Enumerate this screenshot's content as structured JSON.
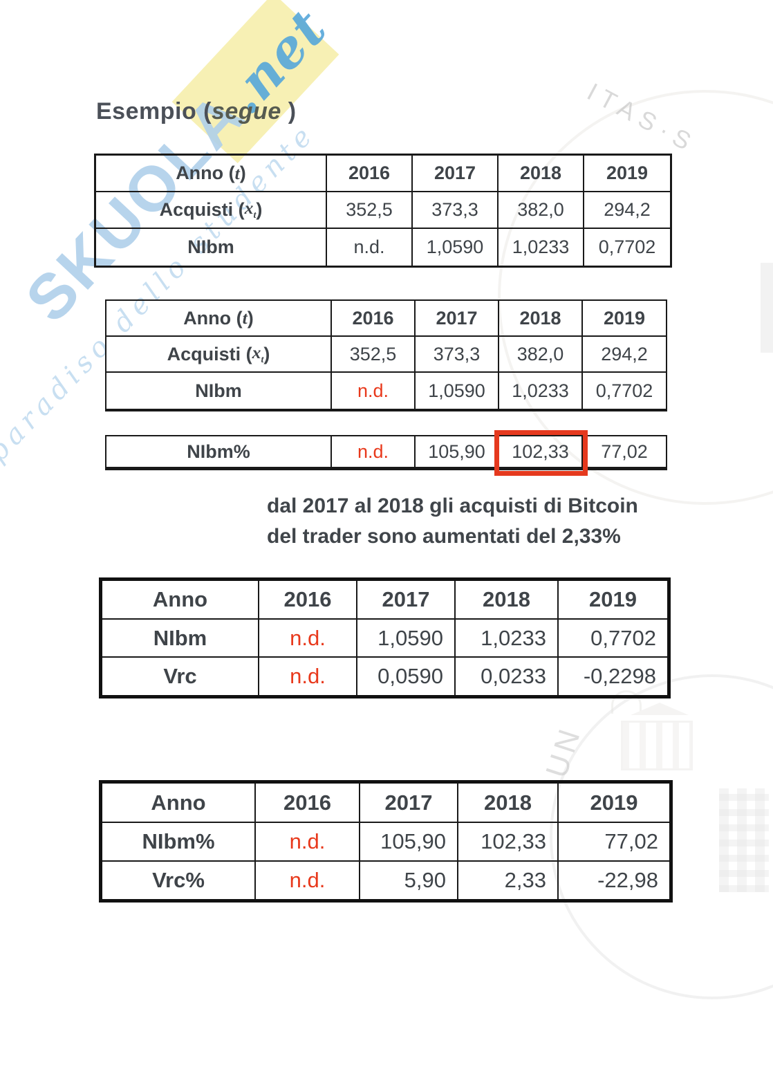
{
  "title": {
    "pre": "Esempio (",
    "italic": "segue",
    "post": " )"
  },
  "labels": {
    "anno": {
      "pre": "Anno ( ",
      "var": "t",
      "post": " )"
    },
    "acquisti": {
      "pre": "Acquisti ( ",
      "var": "x",
      "sub": "t",
      "post": " )"
    },
    "nibm": "NIbm"
  },
  "years": [
    "2016",
    "2017",
    "2018",
    "2019"
  ],
  "table1": {
    "acquisti": [
      "352,5",
      "373,3",
      "382,0",
      "294,2"
    ],
    "nibm": [
      "n.d.",
      "1,0590",
      "1,0233",
      "0,7702"
    ]
  },
  "table2": {
    "acquisti": [
      "352,5",
      "373,3",
      "382,0",
      "294,2"
    ],
    "nibm": [
      "n.d.",
      "1,0590",
      "1,0233",
      "0,7702"
    ]
  },
  "table3": {
    "label": "NIbm%",
    "values": [
      "n.d.",
      "105,90",
      "102,33",
      "77,02"
    ],
    "highlighted_value": "102,33"
  },
  "caption": {
    "line1": "dal 2017 al 2018 gli acquisti di Bitcoin",
    "line2": "del trader sono aumentati del 2,33%"
  },
  "table4": {
    "header": [
      "Anno",
      "2016",
      "2017",
      "2018",
      "2019"
    ],
    "rows": [
      {
        "label": "NIbm",
        "values": [
          "n.d.",
          "1,0590",
          "1,0233",
          "0,7702"
        ]
      },
      {
        "label": "Vrc",
        "values": [
          "n.d.",
          "0,0590",
          "0,0233",
          "-0,2298"
        ]
      }
    ]
  },
  "table5": {
    "header": [
      "Anno",
      "2016",
      "2017",
      "2018",
      "2019"
    ],
    "rows": [
      {
        "label": "NIbm%",
        "values": [
          "n.d.",
          "105,90",
          "102,33",
          "77,02"
        ]
      },
      {
        "label": "Vrc%",
        "values": [
          "n.d.",
          "5,90",
          "2,33",
          "-22,98"
        ]
      }
    ]
  },
  "watermark": {
    "brand": "SKUOLA",
    "suffix": ".net",
    "tagline": "il paradiso dello studente",
    "seal_arc_text": "ITAS·S",
    "seal_letters": "UN"
  },
  "colors": {
    "missing_value_red": "#e8391c",
    "highlight_box_red": "#e5391e",
    "text_dark": "#3f4449",
    "watermark_blue": "#b0d0ea",
    "watermark_blue_strong": "#56a7da",
    "watermark_yellow": "#f7f0b4"
  }
}
